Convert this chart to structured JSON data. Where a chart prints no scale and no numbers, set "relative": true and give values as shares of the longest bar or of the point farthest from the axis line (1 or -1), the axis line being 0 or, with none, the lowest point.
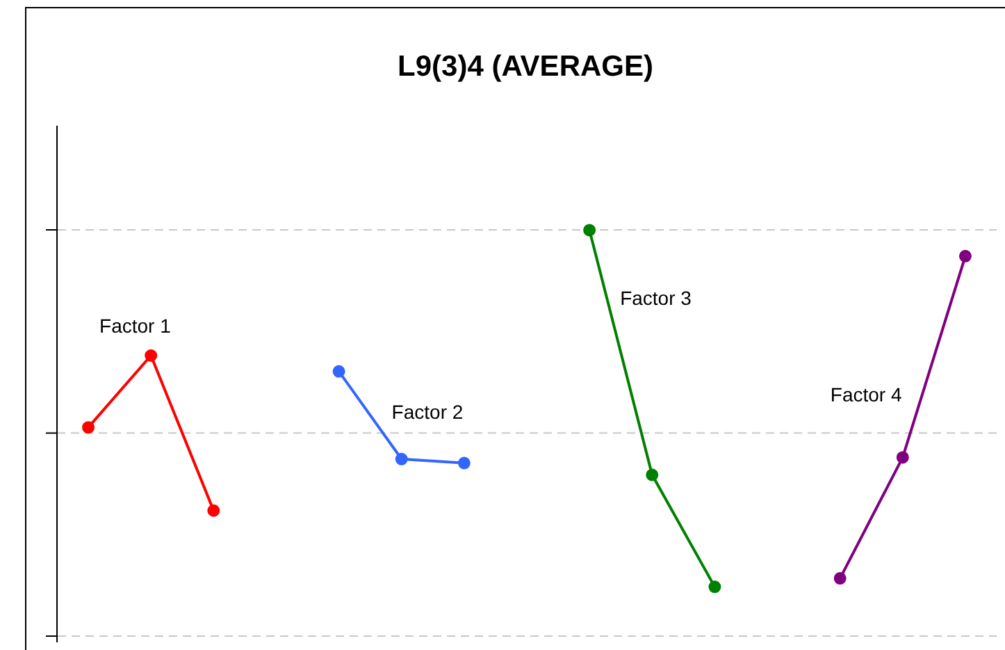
{
  "chart_data": {
    "type": "line",
    "title": "L9(3)4 (AVERAGE)",
    "relative": true,
    "grid": "y",
    "ref_lines": [
      {
        "axis": "y",
        "value": 0.5,
        "color": "#c8c8c8",
        "line_style": "dashed"
      }
    ],
    "marker": "circle",
    "legend": false,
    "categories": [
      null,
      null,
      null,
      null,
      null,
      null,
      null,
      null,
      null,
      null,
      null,
      null,
      null,
      null,
      null
    ],
    "series": [
      {
        "name": "Factor 1",
        "color": "#ff0000",
        "values": [
          0.514,
          0.691,
          0.309,
          null,
          null,
          null,
          null,
          null,
          null,
          null,
          null,
          null,
          null,
          null,
          null
        ]
      },
      {
        "name": "Factor 2",
        "color": "#3366ff",
        "values": [
          null,
          null,
          null,
          null,
          0.652,
          0.436,
          0.426,
          null,
          null,
          null,
          null,
          null,
          null,
          null,
          null
        ]
      },
      {
        "name": "Factor 3",
        "color": "#008000",
        "values": [
          null,
          null,
          null,
          null,
          null,
          null,
          null,
          null,
          1,
          0.397,
          0.121,
          null,
          null,
          null,
          null
        ]
      },
      {
        "name": "Factor 4",
        "color": "#800080",
        "values": [
          null,
          null,
          null,
          null,
          null,
          null,
          null,
          null,
          null,
          null,
          null,
          null,
          0.142,
          0.44,
          0.936
        ]
      }
    ]
  }
}
